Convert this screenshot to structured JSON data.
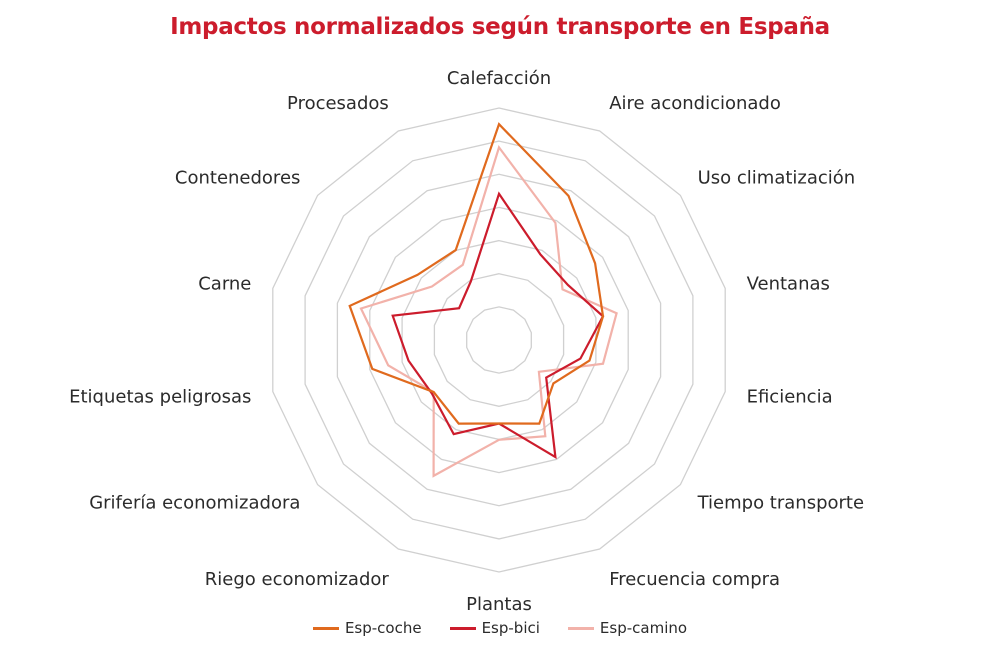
{
  "chart_data": {
    "type": "radar",
    "title": "Impactos normalizados según transporte en España",
    "categories": [
      "Calefacción",
      "Aire acondicionado",
      "Uso climatización",
      "Ventanas",
      "Eficiencia",
      "Tiempo transporte",
      "Frecuencia compra",
      "Plantas",
      "Riego economizador",
      "Grifería economizadora",
      "Etiquetas peligrosas",
      "Carne",
      "Contenedores",
      "Procesados"
    ],
    "rlim": [
      0,
      1
    ],
    "rings": 7,
    "grid": true,
    "legend_position": "bottom",
    "series": [
      {
        "name": "Esp-coche",
        "color": "#e06a1e",
        "values": [
          0.93,
          0.69,
          0.53,
          0.46,
          0.4,
          0.3,
          0.4,
          0.36,
          0.4,
          0.36,
          0.56,
          0.66,
          0.45,
          0.43
        ]
      },
      {
        "name": "Esp-bici",
        "color": "#cc1c2c",
        "values": [
          0.63,
          0.41,
          0.38,
          0.46,
          0.36,
          0.26,
          0.56,
          0.36,
          0.45,
          0.37,
          0.4,
          0.47,
          0.22,
          0.28
        ]
      },
      {
        "name": "Esp-camino",
        "color": "#f2b2aa",
        "values": [
          0.83,
          0.56,
          0.35,
          0.52,
          0.46,
          0.22,
          0.46,
          0.43,
          0.65,
          0.36,
          0.49,
          0.61,
          0.37,
          0.36
        ]
      }
    ]
  },
  "colors": {
    "title": "#cc1c2c",
    "grid": "#d0d0d0"
  }
}
